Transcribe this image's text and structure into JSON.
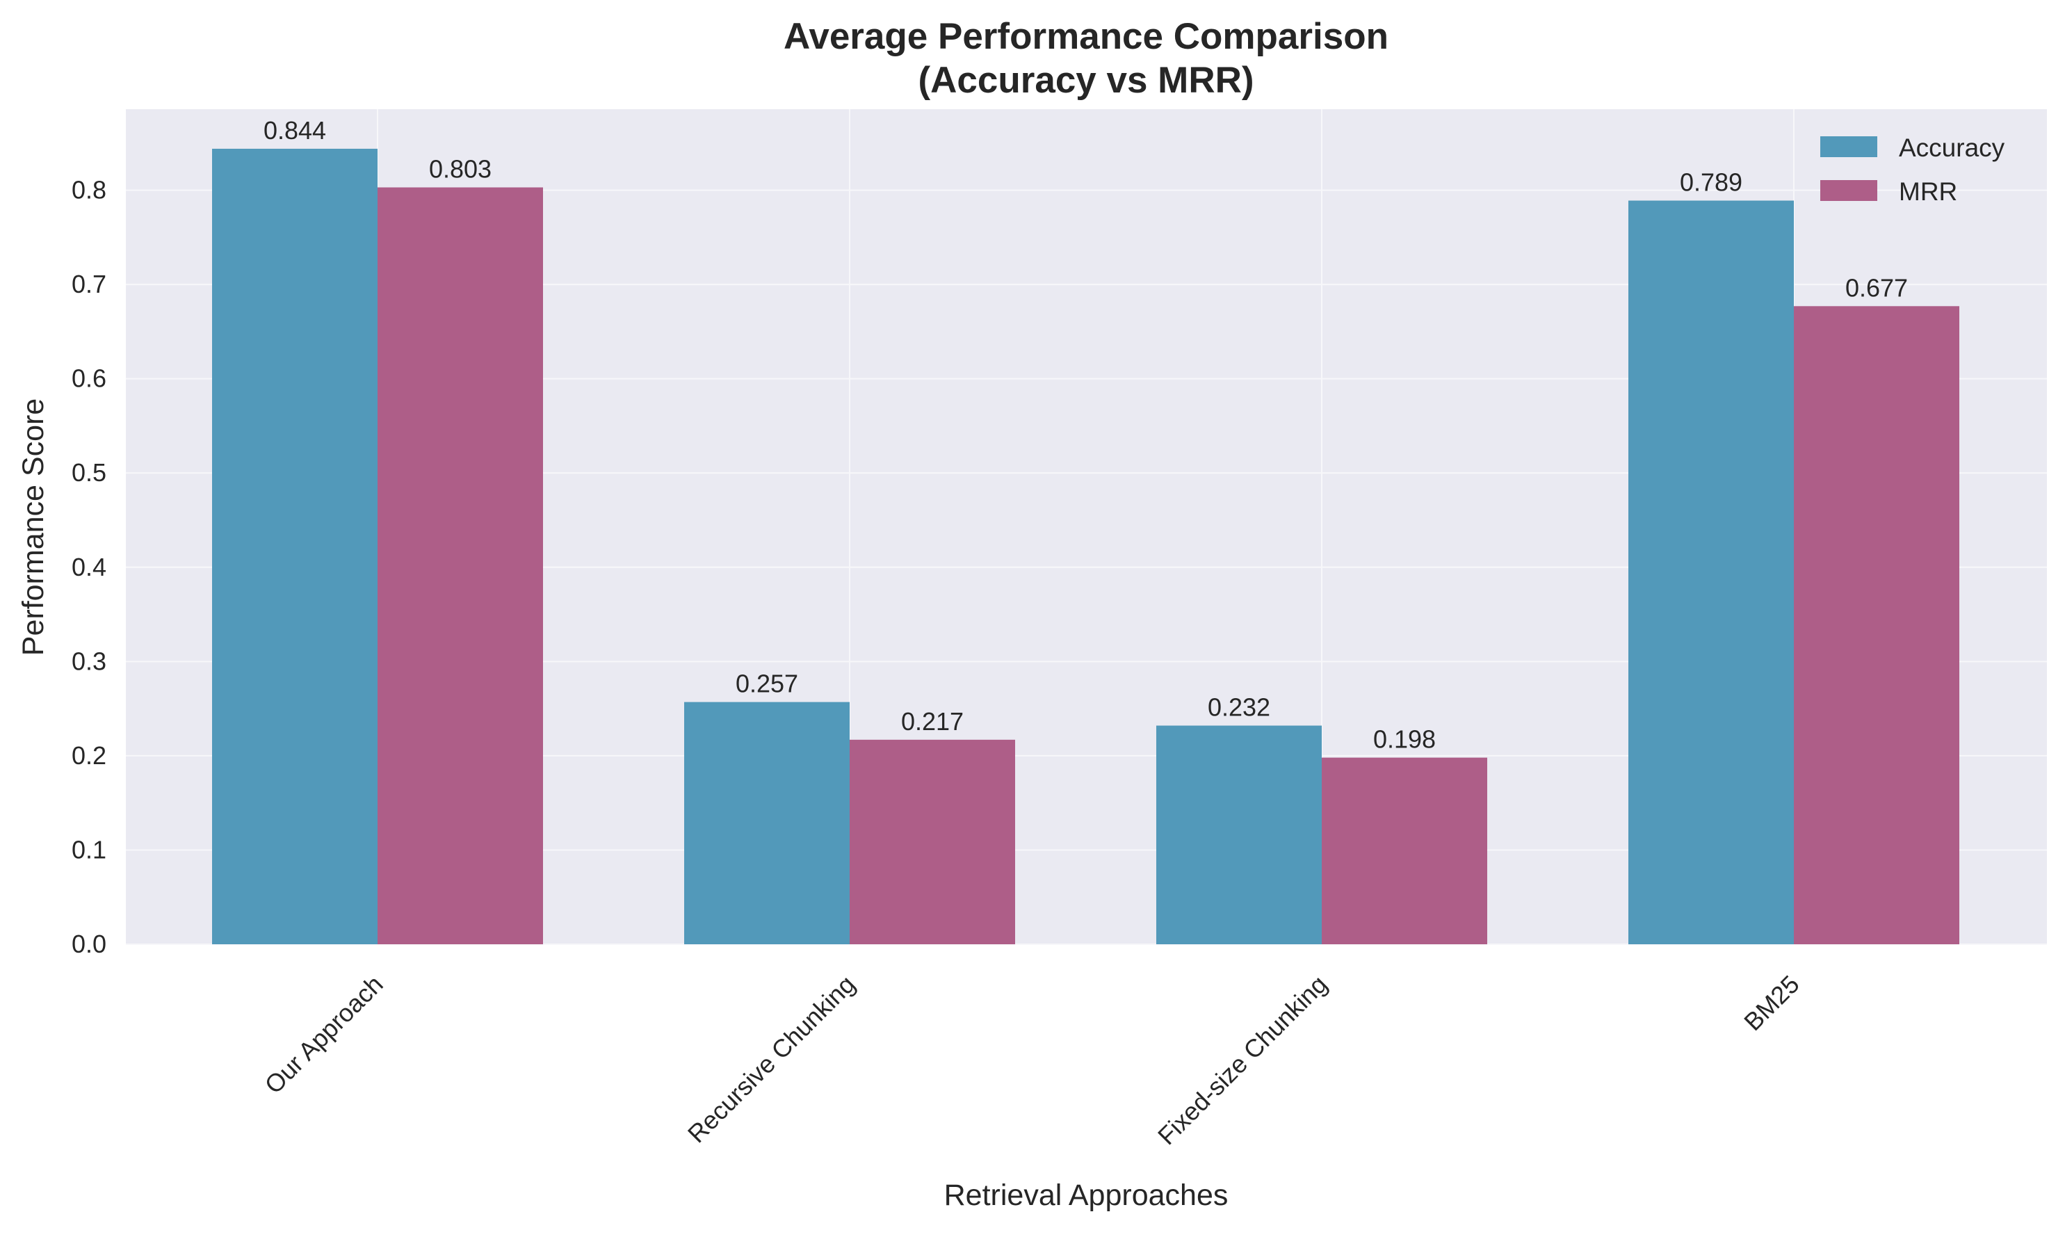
{
  "chart_data": {
    "type": "bar",
    "title": "Average Performance Comparison",
    "subtitle": "(Accuracy vs MRR)",
    "xlabel": "Retrieval Approaches",
    "ylabel": "Performance Score",
    "categories": [
      "Our Approach",
      "Recursive Chunking",
      "Fixed-size Chunking",
      "BM25"
    ],
    "series": [
      {
        "name": "Accuracy",
        "values": [
          0.844,
          0.257,
          0.232,
          0.789
        ],
        "labels": [
          "0.844",
          "0.257",
          "0.232",
          "0.789"
        ],
        "color": "#5299ba"
      },
      {
        "name": "MRR",
        "values": [
          0.803,
          0.217,
          0.198,
          0.677
        ],
        "labels": [
          "0.803",
          "0.217",
          "0.198",
          "0.677"
        ],
        "color": "#ae5e88"
      }
    ],
    "ylim": [
      0,
      0.886
    ],
    "yticks": [
      0.0,
      0.1,
      0.2,
      0.3,
      0.4,
      0.5,
      0.6,
      0.7,
      0.8
    ],
    "ytick_labels": [
      "0.0",
      "0.1",
      "0.2",
      "0.3",
      "0.4",
      "0.5",
      "0.6",
      "0.7",
      "0.8"
    ],
    "grid": true,
    "legend_position": "top-right",
    "plot_background": "#eaeaf2",
    "grid_color": "#f7f7fa"
  }
}
